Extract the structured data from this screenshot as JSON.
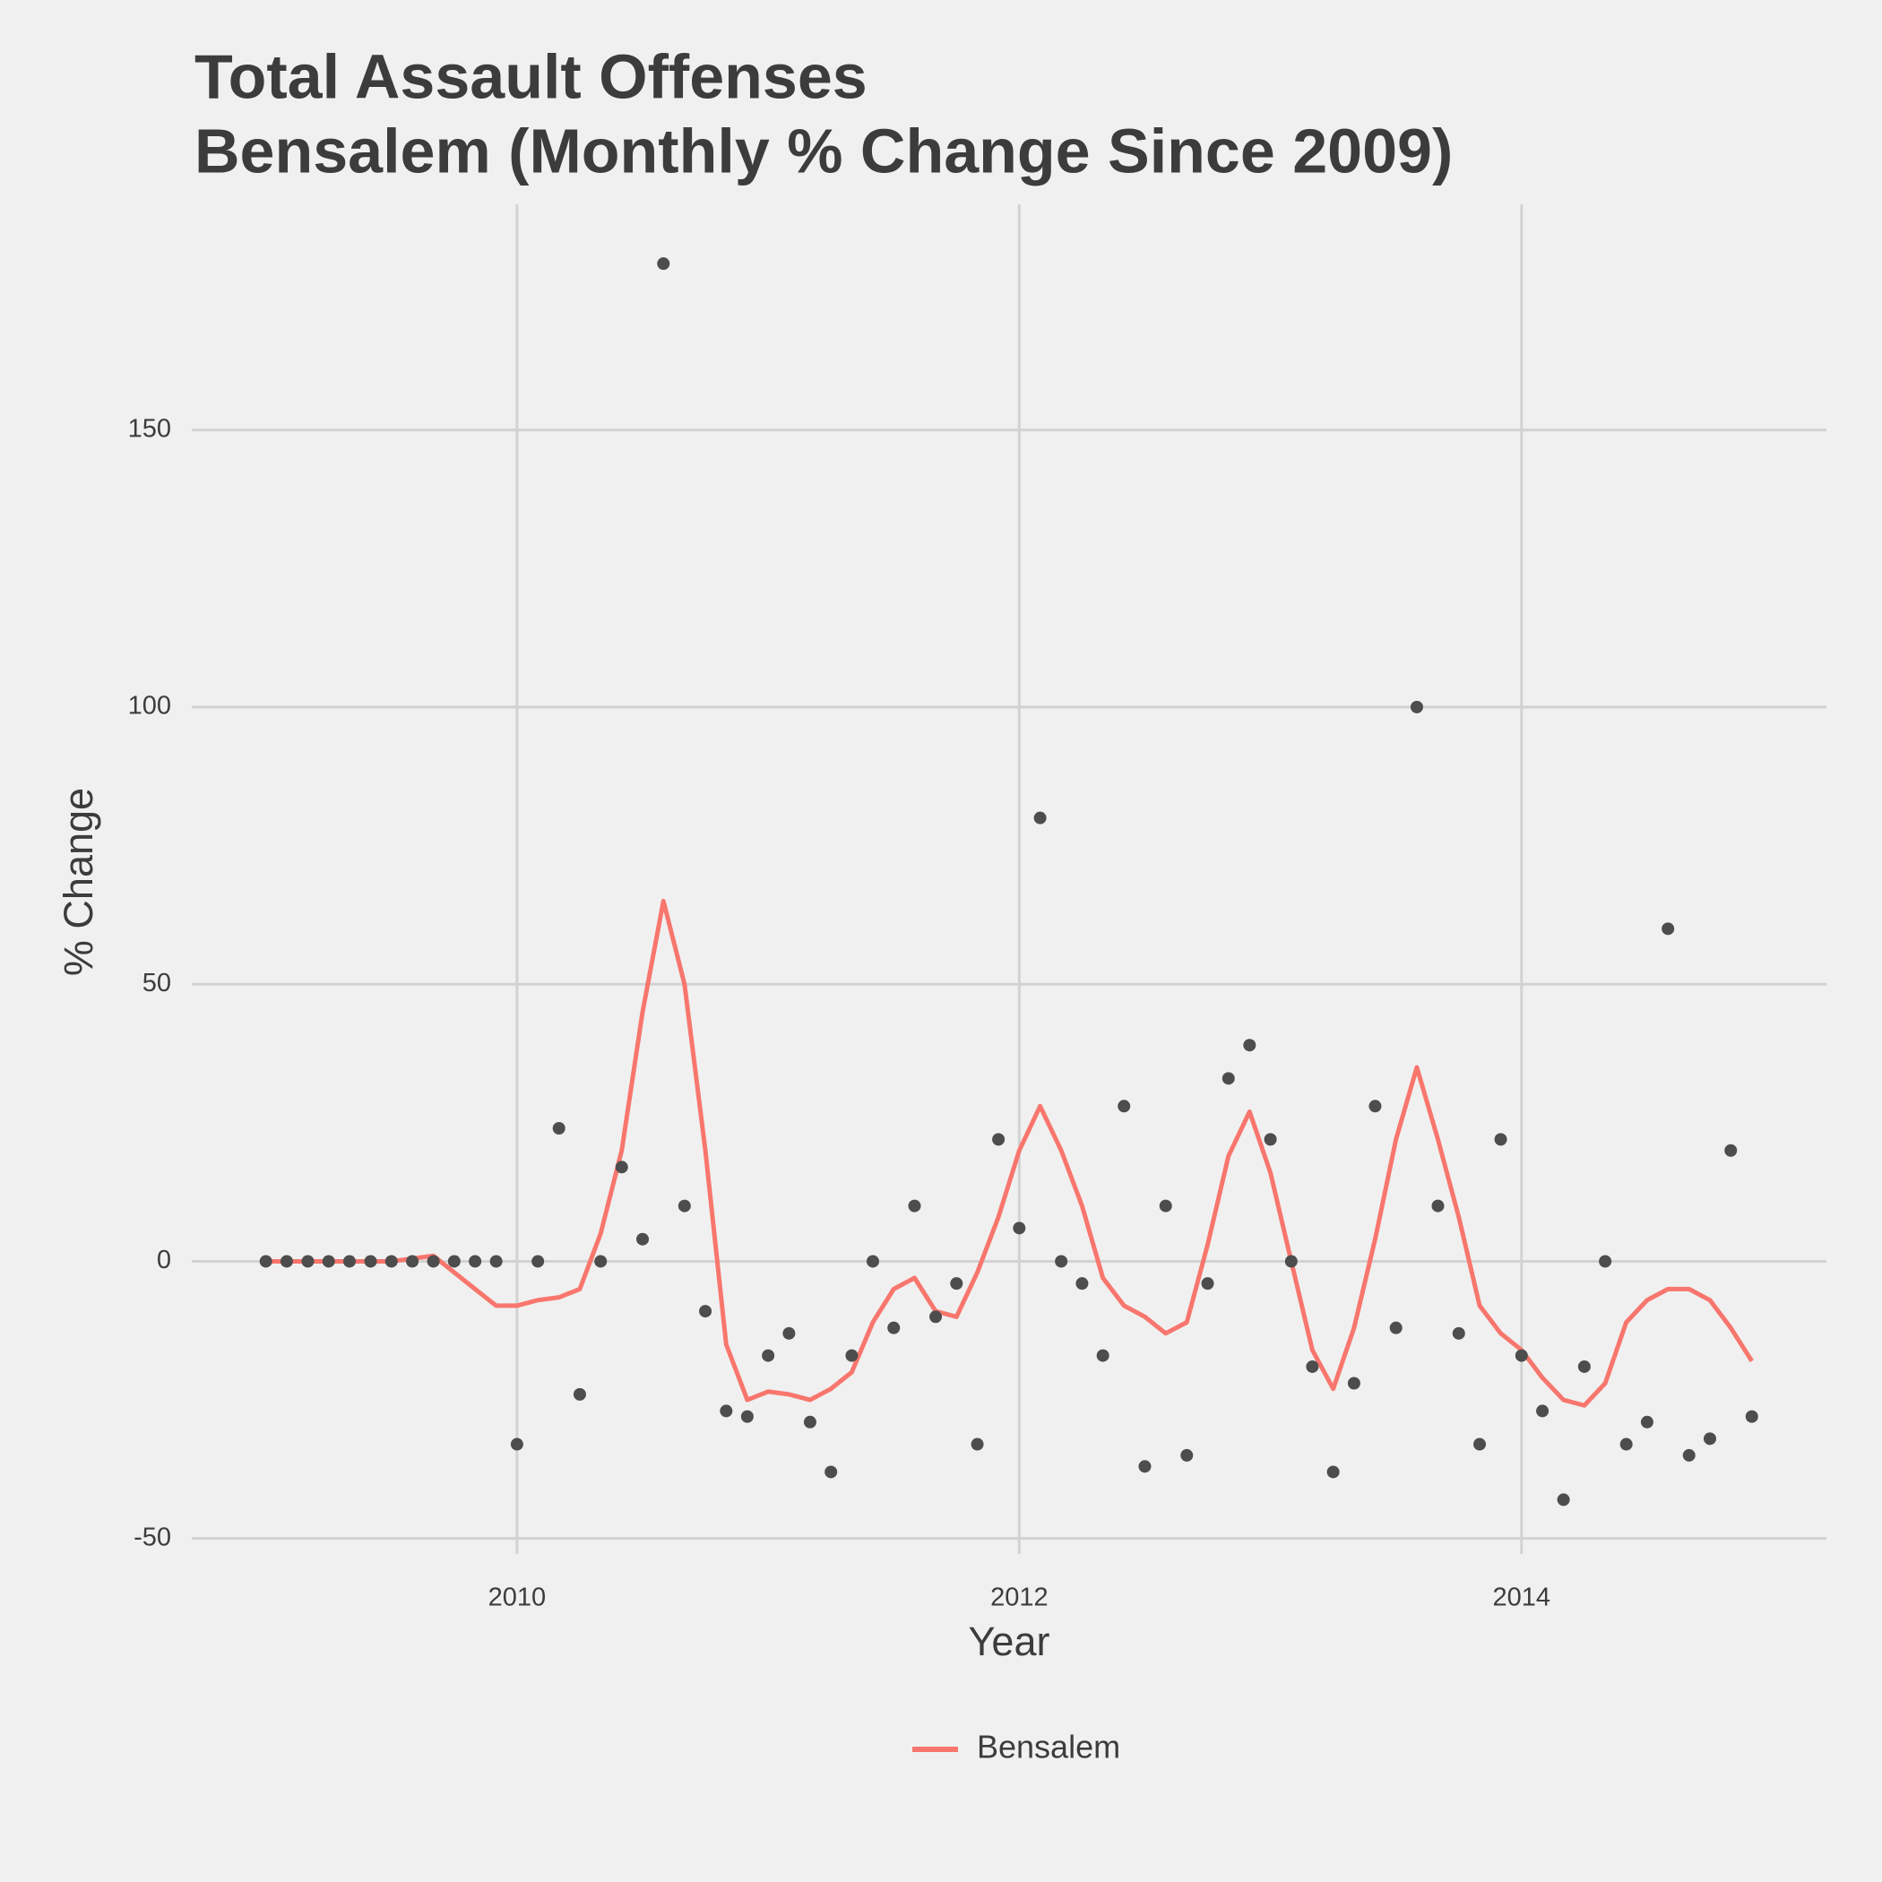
{
  "chart_data": {
    "type": "line",
    "title": [
      "Total Assault Offenses",
      "Bensalem (Monthly % Change Since 2009)"
    ],
    "x_label": "Year",
    "y_label": "% Change",
    "x": [
      2009,
      2009.083,
      2009.167,
      2009.25,
      2009.333,
      2009.417,
      2009.5,
      2009.583,
      2009.667,
      2009.75,
      2009.833,
      2009.917,
      2010,
      2010.083,
      2010.167,
      2010.25,
      2010.333,
      2010.417,
      2010.5,
      2010.583,
      2010.667,
      2010.75,
      2010.833,
      2010.917,
      2011,
      2011.083,
      2011.167,
      2011.25,
      2011.333,
      2011.417,
      2011.5,
      2011.583,
      2011.667,
      2011.75,
      2011.833,
      2011.917,
      2012,
      2012.083,
      2012.167,
      2012.25,
      2012.333,
      2012.417,
      2012.5,
      2012.583,
      2012.667,
      2012.75,
      2012.833,
      2012.917,
      2013,
      2013.083,
      2013.167,
      2013.25,
      2013.333,
      2013.417,
      2013.5,
      2013.583,
      2013.667,
      2013.75,
      2013.833,
      2013.917,
      2014,
      2014.083,
      2014.167,
      2014.25,
      2014.333,
      2014.417,
      2014.5,
      2014.583,
      2014.667,
      2014.75,
      2014.833,
      2014.917
    ],
    "series": [
      {
        "name": "Bensalem",
        "color": "#f8766d",
        "values": [
          0,
          0,
          0,
          0,
          0,
          0,
          0,
          0.5,
          1,
          -2,
          -5,
          -8,
          -8,
          -7,
          -6.5,
          -5,
          5,
          20,
          45,
          65,
          50,
          20,
          -15,
          -25,
          -23.5,
          -24,
          -25,
          -23,
          -20,
          -11,
          -5,
          -3,
          -9,
          -10,
          -2,
          8,
          20,
          28,
          20,
          10,
          -3,
          -8,
          -10,
          -13,
          -11,
          3,
          19,
          27,
          16,
          0,
          -16,
          -23,
          -12,
          4,
          22,
          35,
          22,
          8,
          -8,
          -13,
          -16,
          -21,
          -25,
          -26,
          -22,
          -11,
          -7,
          -5,
          -5,
          -7,
          -12,
          -18
        ]
      }
    ],
    "points": {
      "color": "#4d4d4d",
      "values": [
        0,
        0,
        0,
        0,
        0,
        0,
        0,
        0,
        0,
        0,
        0,
        0,
        -33,
        0,
        24,
        -24,
        0,
        17,
        4,
        180,
        10,
        -9,
        -27,
        -28,
        -17,
        -13,
        -29,
        -38,
        -17,
        0,
        -12,
        10,
        -10,
        -4,
        -33,
        22,
        6,
        80,
        0,
        -4,
        -17,
        28,
        -37,
        10,
        -35,
        -4,
        33,
        39,
        22,
        0,
        -19,
        -38,
        -22,
        28,
        -12,
        100,
        10,
        -13,
        -33,
        22,
        -17,
        -27,
        -43,
        -19,
        0,
        -33,
        -29,
        60,
        -35,
        -32,
        20,
        -28
      ]
    },
    "xlim": [
      2008.705,
      2015.214
    ],
    "xticks": [
      2010,
      2012,
      2014
    ],
    "ylim": [
      -52.8,
      190.7
    ],
    "yticks": [
      -50,
      0,
      50,
      100,
      150
    ],
    "grid": true,
    "legend": "bottom"
  }
}
